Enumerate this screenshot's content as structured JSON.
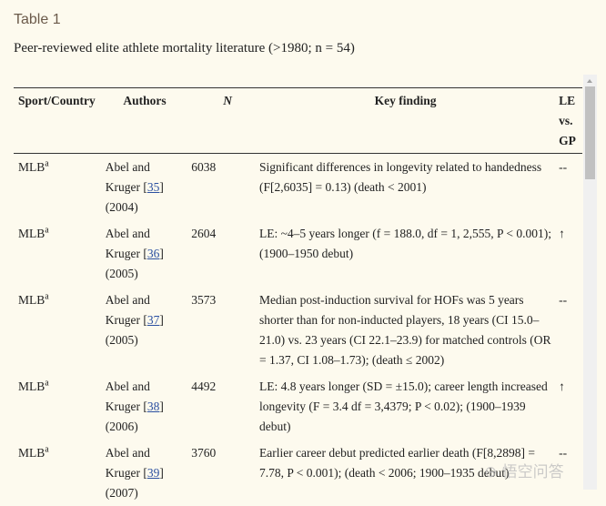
{
  "title": "Table 1",
  "caption": "Peer-reviewed elite athlete mortality literature (>1980; n = 54)",
  "columns": {
    "sport": "Sport/Country",
    "authors": "Authors",
    "n": "N",
    "finding": "Key finding",
    "le": "LE vs. GP"
  },
  "rows": [
    {
      "sport": "MLB",
      "sup": "a",
      "authors": "Abel and Kruger",
      "ref": "35",
      "year": "(2004)",
      "n": "6038",
      "finding": "Significant differences in longevity related to handedness (F[2,6035] = 0.13) (death < 2001)",
      "le": "--"
    },
    {
      "sport": "MLB",
      "sup": "a",
      "authors": "Abel and Kruger",
      "ref": "36",
      "year": "(2005)",
      "n": "2604",
      "finding": "LE: ~4–5 years longer (f = 188.0, df = 1, 2,555, P < 0.001); (1900–1950 debut)",
      "le": "↑"
    },
    {
      "sport": "MLB",
      "sup": "a",
      "authors": "Abel and Kruger",
      "ref": "37",
      "year": "(2005)",
      "n": "3573",
      "finding": "Median post-induction survival for HOFs was 5 years shorter than for non-inducted players, 18 years (CI 15.0–21.0) vs. 23 years (CI 22.1–23.9) for matched controls (OR = 1.37, CI 1.08–1.73); (death ≤ 2002)",
      "le": "--"
    },
    {
      "sport": "MLB",
      "sup": "a",
      "authors": "Abel and Kruger",
      "ref": "38",
      "year": "(2006)",
      "n": "4492",
      "finding": "LE: 4.8 years longer (SD = ±15.0); career length increased longevity (F = 3.4 df = 3,4379; P < 0.02); (1900–1939 debut)",
      "le": "↑"
    },
    {
      "sport": "MLB",
      "sup": "a",
      "authors": "Abel and Kruger",
      "ref": "39",
      "year": "(2007)",
      "n": "3760",
      "finding": "Earlier career debut predicted earlier death (F[8,2898] = 7.78, P < 0.001); (death < 2006; 1900–1935 debut)",
      "le": "--"
    }
  ],
  "watermark": "悟空问答"
}
